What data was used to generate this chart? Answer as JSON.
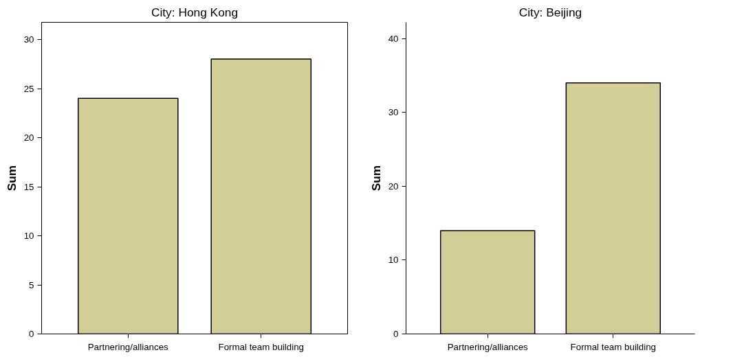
{
  "chart_data": [
    {
      "type": "bar",
      "title": "City: Hong Kong",
      "ylabel": "Sum",
      "categories": [
        "Partnering/alliances",
        "Formal team building"
      ],
      "values": [
        24,
        28
      ],
      "color": "#d3cd98",
      "ylim": [
        0,
        31.75
      ],
      "yticks": [
        0,
        5,
        10,
        15,
        20,
        25,
        30
      ],
      "grid": false
    },
    {
      "type": "bar",
      "title": "City: Beijing",
      "ylabel": "Sum",
      "categories": [
        "Partnering/alliances",
        "Formal team building"
      ],
      "values": [
        14,
        34
      ],
      "color": "#d3cd98",
      "ylim": [
        0,
        42.2
      ],
      "yticks": [
        0,
        10,
        20,
        30,
        40
      ],
      "grid": false
    }
  ]
}
